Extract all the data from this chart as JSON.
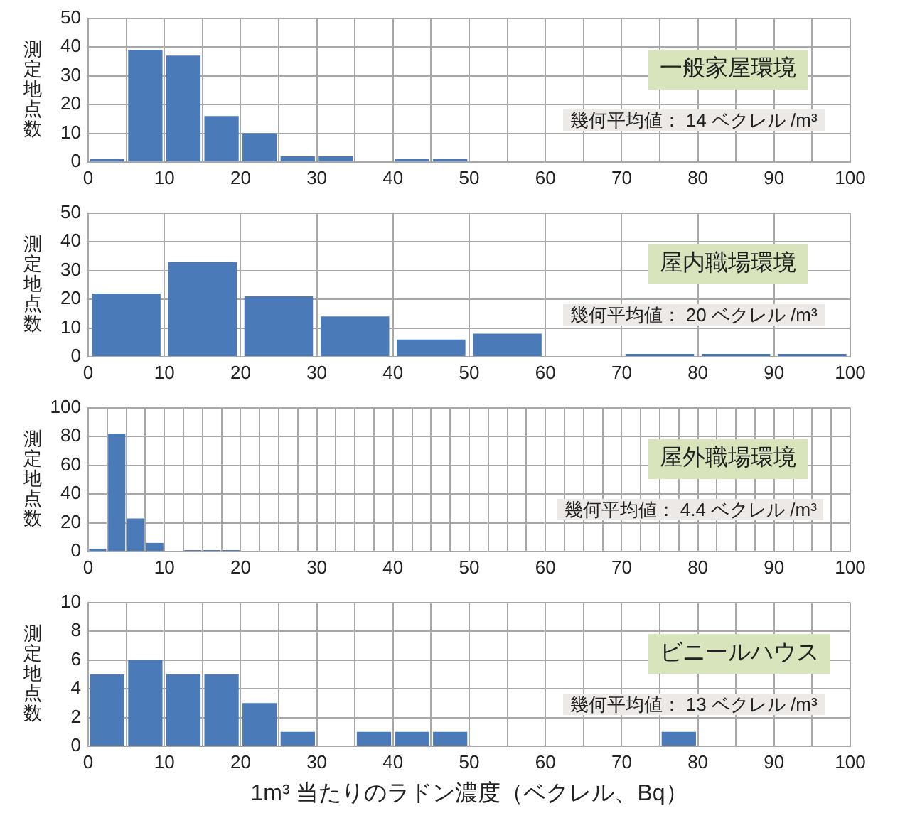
{
  "chart_data": [
    {
      "type": "histogram",
      "title": "一般家屋環境",
      "ylabel": "測定地点数",
      "annotations": [
        "幾何平均値： 14 ベクレル /m³"
      ],
      "bins": [
        0,
        5,
        10,
        15,
        20,
        25,
        30,
        35,
        40,
        45,
        50,
        55,
        60,
        65,
        70,
        75,
        80,
        85,
        90,
        95,
        100
      ],
      "values": [
        1,
        39,
        37,
        16,
        10,
        2,
        2,
        0,
        1,
        1,
        0,
        0,
        0,
        0,
        0,
        0,
        0,
        0,
        0,
        0
      ],
      "color": "#4a7ab8",
      "xlim": [
        0,
        100
      ],
      "ylim": [
        0,
        50
      ],
      "xticks": [
        0,
        {
          "value": 5,
          "label": null
        },
        10,
        {
          "value": 15,
          "label": null
        },
        20,
        {
          "value": 25,
          "label": null
        },
        30,
        {
          "value": 35,
          "label": null
        },
        40,
        {
          "value": 45,
          "label": null
        },
        50,
        {
          "value": 55,
          "label": null
        },
        60,
        {
          "value": 65,
          "label": null
        },
        70,
        {
          "value": 75,
          "label": null
        },
        80,
        {
          "value": 85,
          "label": null
        },
        90,
        {
          "value": 95,
          "label": null
        },
        100
      ],
      "yticks": [
        0,
        10,
        20,
        30,
        40,
        50
      ],
      "grid": true
    },
    {
      "type": "histogram",
      "title": "屋内職場環境",
      "ylabel": "測定地点数",
      "annotations": [
        "幾何平均値： 20 ベクレル /m³"
      ],
      "bins": [
        0,
        10,
        20,
        30,
        40,
        50,
        60,
        70,
        80,
        90,
        100
      ],
      "values": [
        22,
        33,
        21,
        14,
        6,
        8,
        0,
        1,
        1,
        1
      ],
      "color": "#4a7ab8",
      "xlim": [
        0,
        100
      ],
      "ylim": [
        0,
        50
      ],
      "xticks": [
        0,
        10,
        20,
        30,
        40,
        50,
        60,
        70,
        80,
        90,
        100
      ],
      "yticks": [
        0,
        10,
        20,
        30,
        40,
        50
      ],
      "grid": true
    },
    {
      "type": "histogram",
      "title": "屋外職場環境",
      "ylabel": "測定地点数",
      "annotations": [
        "幾何平均値： 4.4 ベクレル /m³"
      ],
      "bins": [
        0,
        2.5,
        5,
        7.5,
        10,
        12.5,
        15,
        17.5,
        20,
        22.5,
        25,
        27.5,
        30,
        32.5,
        35,
        37.5,
        40,
        42.5,
        45,
        47.5,
        50,
        52.5,
        55,
        57.5,
        60,
        62.5,
        65,
        67.5,
        70,
        72.5,
        75,
        77.5,
        80,
        82.5,
        85,
        87.5,
        90,
        92.5,
        95,
        97.5,
        100
      ],
      "values": [
        2,
        82,
        23,
        6,
        0,
        1,
        1,
        1,
        0,
        0,
        0,
        0,
        0,
        0,
        0,
        0,
        0,
        0,
        0,
        0,
        0,
        0,
        0,
        0,
        0,
        0,
        0,
        0,
        0,
        0,
        0,
        0,
        0,
        0,
        0,
        0,
        0,
        0,
        0,
        0
      ],
      "color": "#4a7ab8",
      "xlim": [
        0,
        100
      ],
      "ylim": [
        0,
        100
      ],
      "xticks": [
        0,
        {
          "value": 2.5,
          "label": null
        },
        {
          "value": 5,
          "label": null
        },
        {
          "value": 7.5,
          "label": null
        },
        10,
        {
          "value": 12.5,
          "label": null
        },
        {
          "value": 15,
          "label": null
        },
        {
          "value": 17.5,
          "label": null
        },
        20,
        {
          "value": 22.5,
          "label": null
        },
        {
          "value": 25,
          "label": null
        },
        {
          "value": 27.5,
          "label": null
        },
        30,
        {
          "value": 32.5,
          "label": null
        },
        {
          "value": 35,
          "label": null
        },
        {
          "value": 37.5,
          "label": null
        },
        40,
        {
          "value": 42.5,
          "label": null
        },
        {
          "value": 45,
          "label": null
        },
        {
          "value": 47.5,
          "label": null
        },
        50,
        {
          "value": 52.5,
          "label": null
        },
        {
          "value": 55,
          "label": null
        },
        {
          "value": 57.5,
          "label": null
        },
        60,
        {
          "value": 62.5,
          "label": null
        },
        {
          "value": 65,
          "label": null
        },
        {
          "value": 67.5,
          "label": null
        },
        70,
        {
          "value": 72.5,
          "label": null
        },
        {
          "value": 75,
          "label": null
        },
        {
          "value": 77.5,
          "label": null
        },
        80,
        {
          "value": 82.5,
          "label": null
        },
        {
          "value": 85,
          "label": null
        },
        {
          "value": 87.5,
          "label": null
        },
        90,
        {
          "value": 92.5,
          "label": null
        },
        {
          "value": 95,
          "label": null
        },
        {
          "value": 97.5,
          "label": null
        },
        100
      ],
      "yticks": [
        0,
        20,
        40,
        60,
        80,
        100
      ],
      "grid": true
    },
    {
      "type": "histogram",
      "title": "ビニールハウス",
      "ylabel": "測定地点数",
      "xlabel": "1m³ 当たりのラドン濃度（ベクレル、Bq）",
      "annotations": [
        "幾何平均値： 13 ベクレル /m³"
      ],
      "bins": [
        0,
        5,
        10,
        15,
        20,
        25,
        30,
        35,
        40,
        45,
        50,
        55,
        60,
        65,
        70,
        75,
        80,
        85,
        90,
        95,
        100
      ],
      "values": [
        5,
        6,
        5,
        5,
        3,
        1,
        0,
        1,
        1,
        1,
        0,
        0,
        0,
        0,
        0,
        1,
        0,
        0,
        0,
        0
      ],
      "color": "#4a7ab8",
      "xlim": [
        0,
        100
      ],
      "ylim": [
        0,
        10
      ],
      "xticks": [
        0,
        {
          "value": 5,
          "label": null
        },
        10,
        {
          "value": 15,
          "label": null
        },
        20,
        {
          "value": 25,
          "label": null
        },
        30,
        {
          "value": 35,
          "label": null
        },
        40,
        {
          "value": 45,
          "label": null
        },
        50,
        {
          "value": 55,
          "label": null
        },
        60,
        {
          "value": 65,
          "label": null
        },
        70,
        {
          "value": 75,
          "label": null
        },
        80,
        {
          "value": 85,
          "label": null
        },
        90,
        {
          "value": 95,
          "label": null
        },
        100
      ],
      "yticks": [
        0,
        2,
        4,
        6,
        8,
        10
      ],
      "grid": true
    }
  ]
}
